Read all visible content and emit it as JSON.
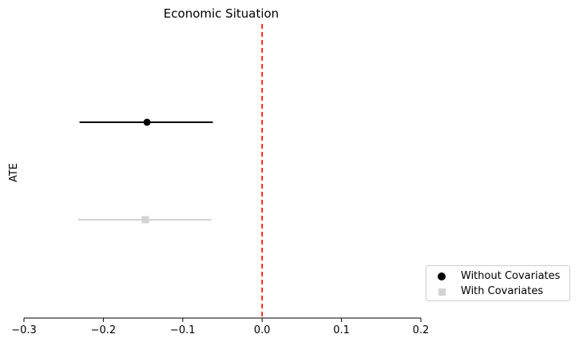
{
  "chart_data": {
    "type": "scatter",
    "title": "Economic Situation",
    "ylabel": "ATE",
    "xlabel": "",
    "xlim": [
      -0.3,
      0.2
    ],
    "xticks": [
      -0.3,
      -0.2,
      -0.1,
      0.0,
      0.1,
      0.2
    ],
    "xtick_labels": [
      "−0.3",
      "−0.2",
      "−0.1",
      "0.0",
      "0.1",
      "0.2"
    ],
    "reference_line": {
      "x": 0.0,
      "color": "#ff0000",
      "style": "dashed"
    },
    "grid": false,
    "legend_position": "bottom-right-outside",
    "series": [
      {
        "name": "Without Covariates",
        "marker": "circle",
        "color": "#000000",
        "estimate": -0.145,
        "ci": [
          -0.23,
          -0.062
        ]
      },
      {
        "name": "With Covariates",
        "marker": "square",
        "color": "#d3d3d3",
        "estimate": -0.147,
        "ci": [
          -0.232,
          -0.064
        ]
      }
    ]
  }
}
